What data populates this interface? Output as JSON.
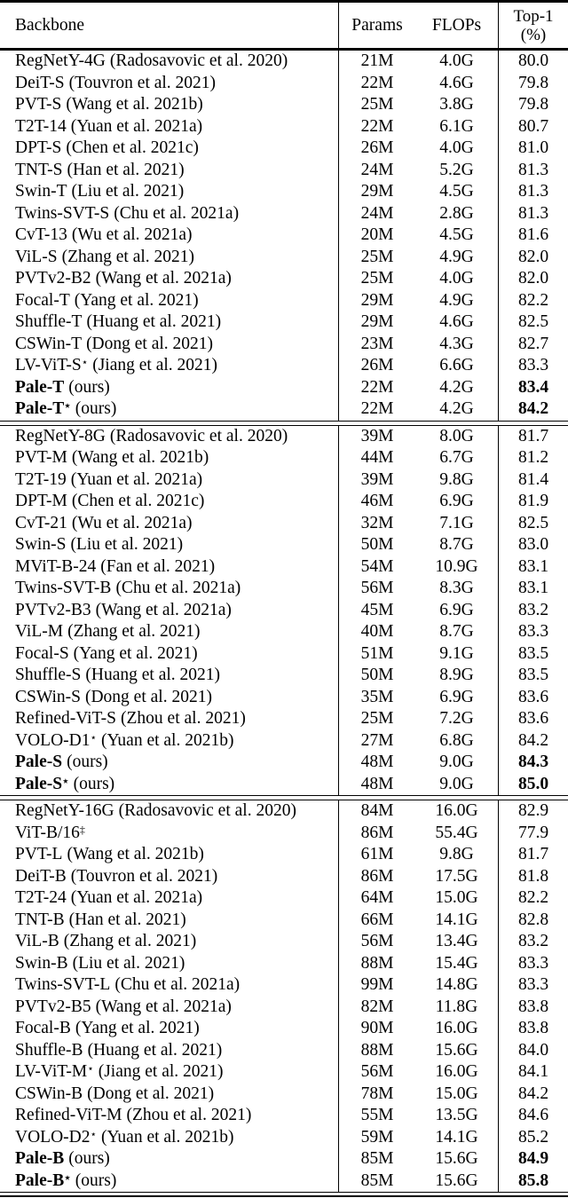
{
  "colors": {
    "text": "#000000",
    "background": "#ffffff",
    "rule": "#000000"
  },
  "table": {
    "headers": {
      "backbone": "Backbone",
      "params": "Params",
      "flops": "FLOPs",
      "top1_line1": "Top-1",
      "top1_line2": "(%)"
    },
    "sections": [
      {
        "rows": [
          {
            "name": "RegNetY-4G",
            "sup": "",
            "cite": "(Radosavovic et al. 2020)",
            "bold": false,
            "params": "21M",
            "flops": "4.0G",
            "top1": "80.0",
            "top1_bold": false
          },
          {
            "name": "DeiT-S",
            "sup": "",
            "cite": "(Touvron et al. 2021)",
            "bold": false,
            "params": "22M",
            "flops": "4.6G",
            "top1": "79.8",
            "top1_bold": false
          },
          {
            "name": "PVT-S",
            "sup": "",
            "cite": "(Wang et al. 2021b)",
            "bold": false,
            "params": "25M",
            "flops": "3.8G",
            "top1": "79.8",
            "top1_bold": false
          },
          {
            "name": "T2T-14",
            "sup": "",
            "cite": "(Yuan et al. 2021a)",
            "bold": false,
            "params": "22M",
            "flops": "6.1G",
            "top1": "80.7",
            "top1_bold": false
          },
          {
            "name": "DPT-S",
            "sup": "",
            "cite": "(Chen et al. 2021c)",
            "bold": false,
            "params": "26M",
            "flops": "4.0G",
            "top1": "81.0",
            "top1_bold": false
          },
          {
            "name": "TNT-S",
            "sup": "",
            "cite": "(Han et al. 2021)",
            "bold": false,
            "params": "24M",
            "flops": "5.2G",
            "top1": "81.3",
            "top1_bold": false
          },
          {
            "name": "Swin-T",
            "sup": "",
            "cite": "(Liu et al. 2021)",
            "bold": false,
            "params": "29M",
            "flops": "4.5G",
            "top1": "81.3",
            "top1_bold": false
          },
          {
            "name": "Twins-SVT-S",
            "sup": "",
            "cite": "(Chu et al. 2021a)",
            "bold": false,
            "params": "24M",
            "flops": "2.8G",
            "top1": "81.3",
            "top1_bold": false
          },
          {
            "name": "CvT-13",
            "sup": "",
            "cite": "(Wu et al. 2021a)",
            "bold": false,
            "params": "20M",
            "flops": "4.5G",
            "top1": "81.6",
            "top1_bold": false
          },
          {
            "name": "ViL-S",
            "sup": "",
            "cite": "(Zhang et al. 2021)",
            "bold": false,
            "params": "25M",
            "flops": "4.9G",
            "top1": "82.0",
            "top1_bold": false
          },
          {
            "name": "PVTv2-B2",
            "sup": "",
            "cite": "(Wang et al. 2021a)",
            "bold": false,
            "params": "25M",
            "flops": "4.0G",
            "top1": "82.0",
            "top1_bold": false
          },
          {
            "name": "Focal-T",
            "sup": "",
            "cite": "(Yang et al. 2021)",
            "bold": false,
            "params": "29M",
            "flops": "4.9G",
            "top1": "82.2",
            "top1_bold": false
          },
          {
            "name": "Shuffle-T",
            "sup": "",
            "cite": "(Huang et al. 2021)",
            "bold": false,
            "params": "29M",
            "flops": "4.6G",
            "top1": "82.5",
            "top1_bold": false
          },
          {
            "name": "CSWin-T",
            "sup": "",
            "cite": "(Dong et al. 2021)",
            "bold": false,
            "params": "23M",
            "flops": "4.3G",
            "top1": "82.7",
            "top1_bold": false
          },
          {
            "name": "LV-ViT-S",
            "sup": "⋆",
            "cite": "(Jiang et al. 2021)",
            "bold": false,
            "params": "26M",
            "flops": "6.6G",
            "top1": "83.3",
            "top1_bold": false
          },
          {
            "name": "Pale-T",
            "sup": "",
            "cite": "(ours)",
            "bold": true,
            "params": "22M",
            "flops": "4.2G",
            "top1": "83.4",
            "top1_bold": true
          },
          {
            "name": "Pale-T",
            "sup": "⋆",
            "cite": "(ours)",
            "bold": true,
            "params": "22M",
            "flops": "4.2G",
            "top1": "84.2",
            "top1_bold": true
          }
        ]
      },
      {
        "rows": [
          {
            "name": "RegNetY-8G",
            "sup": "",
            "cite": "(Radosavovic et al. 2020)",
            "bold": false,
            "params": "39M",
            "flops": "8.0G",
            "top1": "81.7",
            "top1_bold": false
          },
          {
            "name": "PVT-M",
            "sup": "",
            "cite": "(Wang et al. 2021b)",
            "bold": false,
            "params": "44M",
            "flops": "6.7G",
            "top1": "81.2",
            "top1_bold": false
          },
          {
            "name": "T2T-19",
            "sup": "",
            "cite": "(Yuan et al. 2021a)",
            "bold": false,
            "params": "39M",
            "flops": "9.8G",
            "top1": "81.4",
            "top1_bold": false
          },
          {
            "name": "DPT-M",
            "sup": "",
            "cite": "(Chen et al. 2021c)",
            "bold": false,
            "params": "46M",
            "flops": "6.9G",
            "top1": "81.9",
            "top1_bold": false
          },
          {
            "name": "CvT-21",
            "sup": "",
            "cite": "(Wu et al. 2021a)",
            "bold": false,
            "params": "32M",
            "flops": "7.1G",
            "top1": "82.5",
            "top1_bold": false
          },
          {
            "name": "Swin-S",
            "sup": "",
            "cite": "(Liu et al. 2021)",
            "bold": false,
            "params": "50M",
            "flops": "8.7G",
            "top1": "83.0",
            "top1_bold": false
          },
          {
            "name": "MViT-B-24",
            "sup": "",
            "cite": "(Fan et al. 2021)",
            "bold": false,
            "params": "54M",
            "flops": "10.9G",
            "top1": "83.1",
            "top1_bold": false
          },
          {
            "name": "Twins-SVT-B",
            "sup": "",
            "cite": "(Chu et al. 2021a)",
            "bold": false,
            "params": "56M",
            "flops": "8.3G",
            "top1": "83.1",
            "top1_bold": false
          },
          {
            "name": "PVTv2-B3",
            "sup": "",
            "cite": "(Wang et al. 2021a)",
            "bold": false,
            "params": "45M",
            "flops": "6.9G",
            "top1": "83.2",
            "top1_bold": false
          },
          {
            "name": "ViL-M",
            "sup": "",
            "cite": "(Zhang et al. 2021)",
            "bold": false,
            "params": "40M",
            "flops": "8.7G",
            "top1": "83.3",
            "top1_bold": false
          },
          {
            "name": "Focal-S",
            "sup": "",
            "cite": "(Yang et al. 2021)",
            "bold": false,
            "params": "51M",
            "flops": "9.1G",
            "top1": "83.5",
            "top1_bold": false
          },
          {
            "name": "Shuffle-S",
            "sup": "",
            "cite": "(Huang et al. 2021)",
            "bold": false,
            "params": "50M",
            "flops": "8.9G",
            "top1": "83.5",
            "top1_bold": false
          },
          {
            "name": "CSWin-S",
            "sup": "",
            "cite": "(Dong et al. 2021)",
            "bold": false,
            "params": "35M",
            "flops": "6.9G",
            "top1": "83.6",
            "top1_bold": false
          },
          {
            "name": "Refined-ViT-S",
            "sup": "",
            "cite": "(Zhou et al. 2021)",
            "bold": false,
            "params": "25M",
            "flops": "7.2G",
            "top1": "83.6",
            "top1_bold": false
          },
          {
            "name": "VOLO-D1",
            "sup": "⋆",
            "cite": "(Yuan et al. 2021b)",
            "bold": false,
            "params": "27M",
            "flops": "6.8G",
            "top1": "84.2",
            "top1_bold": false
          },
          {
            "name": "Pale-S",
            "sup": "",
            "cite": "(ours)",
            "bold": true,
            "params": "48M",
            "flops": "9.0G",
            "top1": "84.3",
            "top1_bold": true
          },
          {
            "name": "Pale-S",
            "sup": "⋆",
            "cite": "(ours)",
            "bold": true,
            "params": "48M",
            "flops": "9.0G",
            "top1": "85.0",
            "top1_bold": true
          }
        ]
      },
      {
        "rows": [
          {
            "name": "RegNetY-16G",
            "sup": "",
            "cite": "(Radosavovic et al. 2020)",
            "bold": false,
            "params": "84M",
            "flops": "16.0G",
            "top1": "82.9",
            "top1_bold": false
          },
          {
            "name": "ViT-B/16",
            "sup": "‡",
            "cite": "",
            "bold": false,
            "params": "86M",
            "flops": "55.4G",
            "top1": "77.9",
            "top1_bold": false
          },
          {
            "name": "PVT-L",
            "sup": "",
            "cite": "(Wang et al. 2021b)",
            "bold": false,
            "params": "61M",
            "flops": "9.8G",
            "top1": "81.7",
            "top1_bold": false
          },
          {
            "name": "DeiT-B",
            "sup": "",
            "cite": "(Touvron et al. 2021)",
            "bold": false,
            "params": "86M",
            "flops": "17.5G",
            "top1": "81.8",
            "top1_bold": false
          },
          {
            "name": "T2T-24",
            "sup": "",
            "cite": "(Yuan et al. 2021a)",
            "bold": false,
            "params": "64M",
            "flops": "15.0G",
            "top1": "82.2",
            "top1_bold": false
          },
          {
            "name": "TNT-B",
            "sup": "",
            "cite": "(Han et al. 2021)",
            "bold": false,
            "params": "66M",
            "flops": "14.1G",
            "top1": "82.8",
            "top1_bold": false
          },
          {
            "name": "ViL-B",
            "sup": "",
            "cite": "(Zhang et al. 2021)",
            "bold": false,
            "params": "56M",
            "flops": "13.4G",
            "top1": "83.2",
            "top1_bold": false
          },
          {
            "name": "Swin-B",
            "sup": "",
            "cite": "(Liu et al. 2021)",
            "bold": false,
            "params": "88M",
            "flops": "15.4G",
            "top1": "83.3",
            "top1_bold": false
          },
          {
            "name": "Twins-SVT-L",
            "sup": "",
            "cite": "(Chu et al. 2021a)",
            "bold": false,
            "params": "99M",
            "flops": "14.8G",
            "top1": "83.3",
            "top1_bold": false
          },
          {
            "name": "PVTv2-B5",
            "sup": "",
            "cite": "(Wang et al. 2021a)",
            "bold": false,
            "params": "82M",
            "flops": "11.8G",
            "top1": "83.8",
            "top1_bold": false
          },
          {
            "name": "Focal-B",
            "sup": "",
            "cite": "(Yang et al. 2021)",
            "bold": false,
            "params": "90M",
            "flops": "16.0G",
            "top1": "83.8",
            "top1_bold": false
          },
          {
            "name": "Shuffle-B",
            "sup": "",
            "cite": "(Huang et al. 2021)",
            "bold": false,
            "params": "88M",
            "flops": "15.6G",
            "top1": "84.0",
            "top1_bold": false
          },
          {
            "name": "LV-ViT-M",
            "sup": "⋆",
            "cite": "(Jiang et al. 2021)",
            "bold": false,
            "params": "56M",
            "flops": "16.0G",
            "top1": "84.1",
            "top1_bold": false
          },
          {
            "name": "CSWin-B",
            "sup": "",
            "cite": "(Dong et al. 2021)",
            "bold": false,
            "params": "78M",
            "flops": "15.0G",
            "top1": "84.2",
            "top1_bold": false
          },
          {
            "name": "Refined-ViT-M",
            "sup": "",
            "cite": "(Zhou et al. 2021)",
            "bold": false,
            "params": "55M",
            "flops": "13.5G",
            "top1": "84.6",
            "top1_bold": false
          },
          {
            "name": "VOLO-D2",
            "sup": "⋆",
            "cite": "(Yuan et al. 2021b)",
            "bold": false,
            "params": "59M",
            "flops": "14.1G",
            "top1": "85.2",
            "top1_bold": false
          },
          {
            "name": "Pale-B",
            "sup": "",
            "cite": "(ours)",
            "bold": true,
            "params": "85M",
            "flops": "15.6G",
            "top1": "84.9",
            "top1_bold": true
          },
          {
            "name": "Pale-B",
            "sup": "⋆",
            "cite": "(ours)",
            "bold": true,
            "params": "85M",
            "flops": "15.6G",
            "top1": "85.8",
            "top1_bold": true
          }
        ]
      }
    ]
  }
}
